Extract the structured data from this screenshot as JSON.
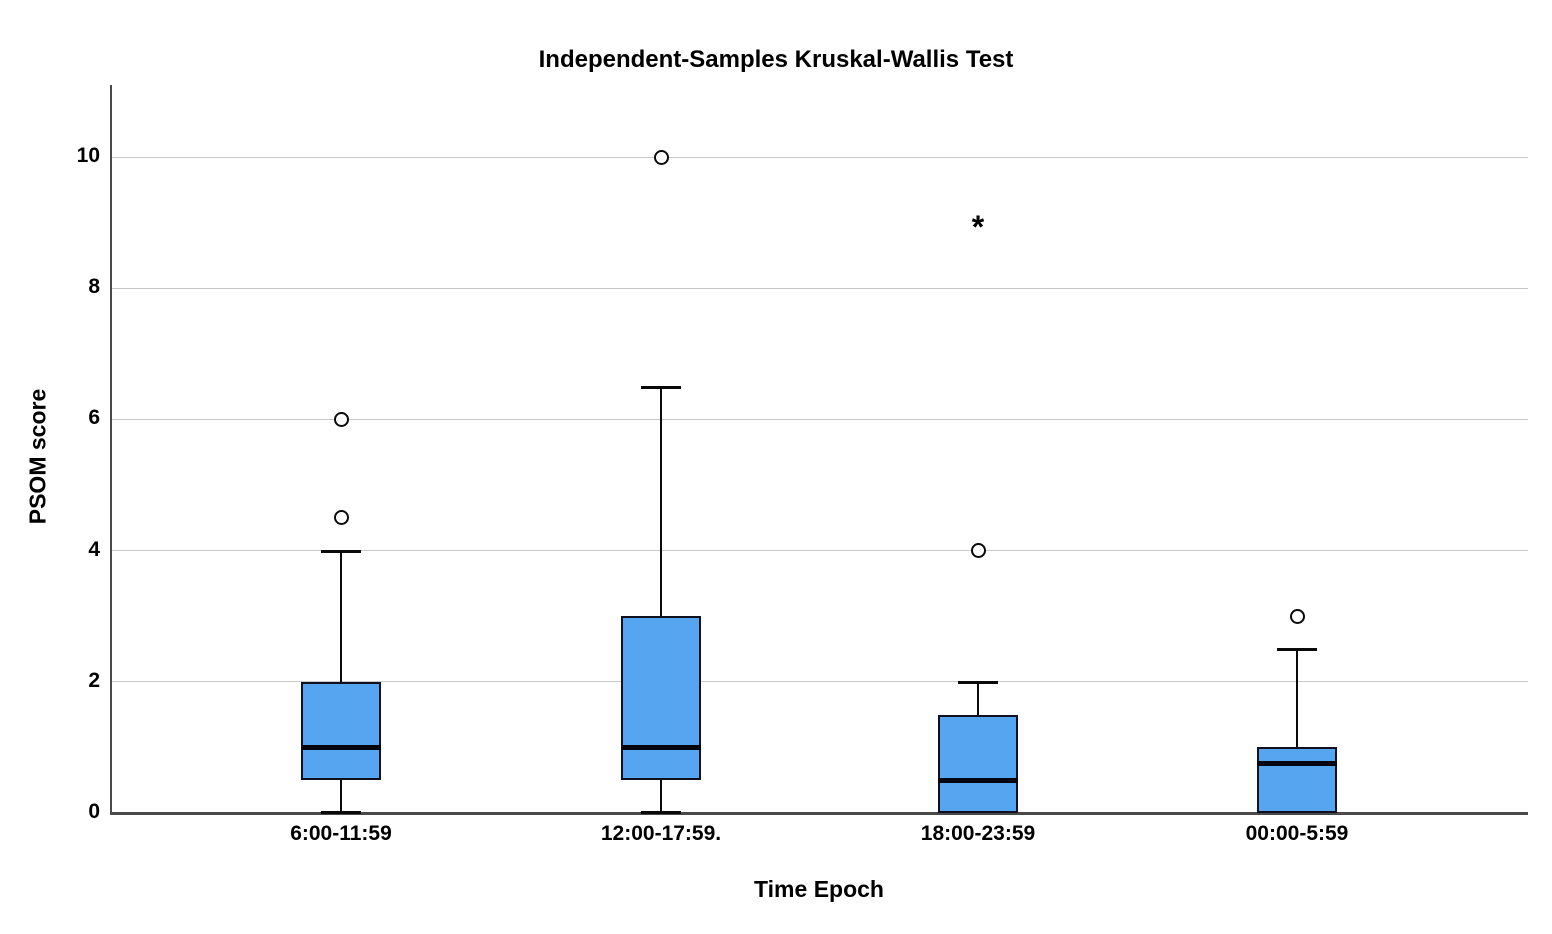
{
  "chart_data": {
    "type": "boxplot",
    "title": "Independent-Samples Kruskal-Wallis Test",
    "xlabel": "Time Epoch",
    "ylabel": "PSOM score",
    "y_ticks": [
      0,
      2,
      4,
      6,
      8,
      10
    ],
    "ylim": [
      0,
      11.1
    ],
    "grid": "horizontal",
    "legend": "none",
    "categories": [
      "6:00-11:59",
      "12:00-17:59.",
      "18:00-23:59",
      "00:00-5:59"
    ],
    "boxes": [
      {
        "category": "6:00-11:59",
        "whisker_low": 0,
        "q1": 0.5,
        "median": 1,
        "q3": 2,
        "whisker_high": 4,
        "outliers": [
          4.5,
          6
        ],
        "extremes": []
      },
      {
        "category": "12:00-17:59.",
        "whisker_low": 0,
        "q1": 0.5,
        "median": 1,
        "q3": 3,
        "whisker_high": 6.5,
        "outliers": [
          10
        ],
        "extremes": []
      },
      {
        "category": "18:00-23:59",
        "whisker_low": 0,
        "q1": 0,
        "median": 0.5,
        "q3": 1.5,
        "whisker_high": 2,
        "outliers": [
          4
        ],
        "extremes": [
          9
        ]
      },
      {
        "category": "00:00-5:59",
        "whisker_low": 0,
        "q1": 0,
        "median": 0.75,
        "q3": 1,
        "whisker_high": 2.5,
        "outliers": [
          3
        ],
        "extremes": []
      }
    ],
    "colors": {
      "box_fill": "#56A5F0",
      "box_border": "#10101e",
      "median": "#060610",
      "whisker": "#0a0a0a",
      "outlier_stroke": "#0a0a0a",
      "gridline": "#c9c9c9",
      "axis": "#4a4a4a",
      "text": "#000000",
      "background": "#ffffff"
    }
  }
}
